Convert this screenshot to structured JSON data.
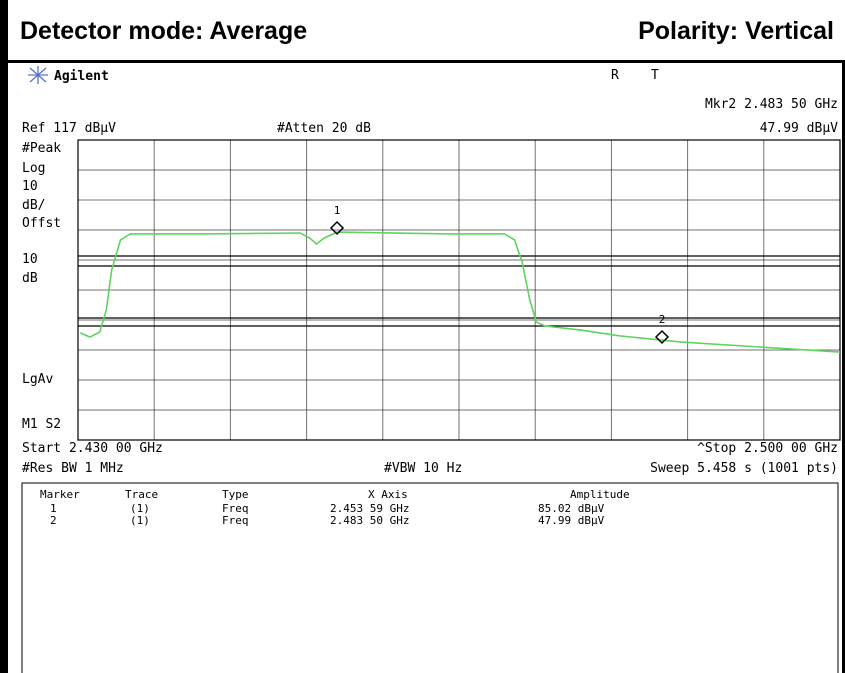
{
  "header": {
    "detector": "Detector  mode:  Average",
    "polarity": "Polarity: Vertical"
  },
  "screen": {
    "brand": "Agilent",
    "status_r": "R",
    "status_t": "T",
    "marker_readout_freq": "Mkr2  2.483 50 GHz",
    "marker_readout_amp": "47.99 dBµV",
    "ref": "Ref 117 dBµV",
    "atten": "#Atten 20 dB",
    "left_labels": [
      "#Peak",
      "Log",
      "10",
      "dB/",
      "Offst",
      "10",
      "dB",
      "LgAv",
      "M1  S2"
    ],
    "start": "Start 2.430 00 GHz",
    "stop": "^Stop 2.500 00 GHz",
    "res_bw": "#Res BW 1 MHz",
    "vbw": "#VBW 10 Hz",
    "sweep": "Sweep 5.458 s (1001 pts)",
    "marker_tags": [
      "1",
      "2"
    ],
    "trace": {
      "xlim": [
        2.43,
        2.5
      ],
      "ylim": [
        17,
        117
      ],
      "x": [
        2.4302,
        2.4311,
        2.432,
        2.4326,
        2.4331,
        2.4339,
        2.4348,
        2.4412,
        2.4504,
        2.4513,
        2.4519,
        2.4526,
        2.4538,
        2.4642,
        2.4692,
        2.4701,
        2.4708,
        2.4715,
        2.4721,
        2.4729,
        2.4761,
        2.4798,
        2.4853,
        2.4926,
        2.5
      ],
      "y": [
        52.7,
        51.3,
        53,
        60.3,
        73.7,
        83.7,
        85.7,
        85.7,
        86,
        84.3,
        82.3,
        84.3,
        86.3,
        85.7,
        85.7,
        83.7,
        76.3,
        63.7,
        56.3,
        55,
        53.7,
        51.7,
        49.7,
        48,
        46.3
      ],
      "color": "#5fd35f"
    }
  },
  "table": {
    "columns": [
      "Marker",
      "Trace",
      "Type",
      "X Axis",
      "Amplitude"
    ],
    "rows": [
      [
        "1",
        "(1)",
        "Freq",
        "2.453 59 GHz",
        "85.02 dBµV"
      ],
      [
        "2",
        "(1)",
        "Freq",
        "2.483 50 GHz",
        "47.99 dBµV"
      ]
    ]
  }
}
